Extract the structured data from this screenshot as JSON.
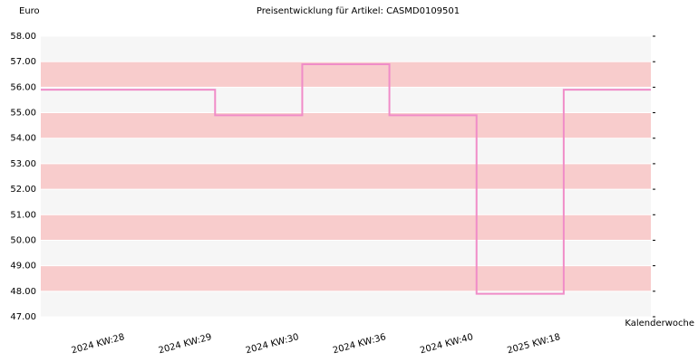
{
  "chart_data": {
    "type": "step",
    "title": "Preisentwicklung für Artikel: CASMD0109501",
    "y_label": "Euro",
    "x_label": "Kalenderwoche",
    "categories": [
      "2024 KW:28",
      "2024 KW:29",
      "2024 KW:30",
      "2024 KW:36",
      "2024 KW:40",
      "2025 KW:18"
    ],
    "values": [
      55.9,
      54.9,
      56.9,
      54.9,
      47.9,
      55.9
    ],
    "color": "#f08cc8",
    "ylim": [
      47,
      58
    ],
    "yticks": [
      {
        "value": 47,
        "label": "47.00"
      },
      {
        "value": 48,
        "label": "48.00"
      },
      {
        "value": 49,
        "label": "49.00"
      },
      {
        "value": 50,
        "label": "50.00"
      },
      {
        "value": 51,
        "label": "51.00"
      },
      {
        "value": 52,
        "label": "52.00"
      },
      {
        "value": 53,
        "label": "53.00"
      },
      {
        "value": 54,
        "label": "54.00"
      },
      {
        "value": 55,
        "label": "55.00"
      },
      {
        "value": 56,
        "label": "56.00"
      },
      {
        "value": 57,
        "label": "57.00"
      },
      {
        "value": 58,
        "label": "58.00"
      }
    ],
    "band_colors": [
      "#f6f6f6",
      "#f8cccc"
    ]
  }
}
